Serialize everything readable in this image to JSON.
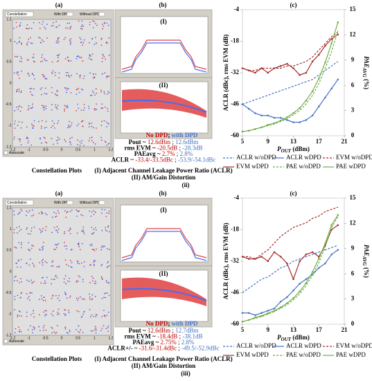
{
  "chart_data": [
    {
      "type": "line",
      "title": "(c)",
      "ylabel": "ACLR (dBc), rms EVM (dB)",
      "xlabel": {
        "main": "P",
        "sub": "OUT",
        "rest": " (dBm)"
      },
      "y2label": {
        "main": "PAE",
        "sub": "AVG",
        "rest": " (%)"
      },
      "x": [
        5,
        6,
        7,
        8,
        9,
        10,
        11,
        12,
        13,
        14,
        15,
        16,
        17,
        18,
        19,
        20
      ],
      "xlim": [
        5,
        21
      ],
      "xticks": [
        5,
        9,
        13,
        17,
        21
      ],
      "ylim": [
        -60,
        -4
      ],
      "yticks": [
        -60,
        -46,
        -32,
        -18,
        -4
      ],
      "y2lim": [
        0,
        15
      ],
      "y2ticks": [
        0,
        3,
        6,
        9,
        12,
        15
      ],
      "series": [
        {
          "name": "ACLR w/oDPD",
          "color": "#4472c4",
          "dashed": true,
          "values": [
            -46,
            -45,
            -44,
            -43,
            -42,
            -41,
            -40,
            -39,
            -38,
            -37,
            -36,
            -35,
            -33,
            -31,
            -29,
            -27
          ]
        },
        {
          "name": "ACLR wDPD",
          "color": "#4472c4",
          "dashed": false,
          "values": [
            -46,
            -48,
            -50,
            -51,
            -51,
            -52,
            -52,
            -53,
            -54,
            -54,
            -53,
            -51,
            -47,
            -43,
            -39,
            -35
          ]
        },
        {
          "name": "EVM w/oDPD",
          "color": "#a52a2a",
          "dashed": true,
          "values": [
            -30,
            -31,
            -31,
            -30,
            -30,
            -30,
            -30,
            -29,
            -29,
            -28,
            -27,
            -25,
            -22,
            -19,
            -16,
            -14
          ]
        },
        {
          "name": "EVM wDPD",
          "color": "#a52a2a",
          "dashed": false,
          "values": [
            -30,
            -31,
            -32,
            -30,
            -32,
            -30,
            -29,
            -28,
            -30,
            -33,
            -32,
            -27,
            -24,
            -20,
            -17,
            -15
          ]
        },
        {
          "name": "PAE w/oDPD",
          "color": "#70ad47",
          "dashed": true,
          "axis": "y2",
          "values": [
            0.5,
            0.6,
            0.8,
            1.0,
            1.2,
            1.4,
            1.7,
            2.0,
            2.5,
            3.0,
            3.8,
            4.8,
            6.2,
            8.0,
            10,
            12.5
          ]
        },
        {
          "name": "PAE wDPD",
          "color": "#70ad47",
          "dashed": false,
          "axis": "y2",
          "values": [
            0.5,
            0.6,
            0.8,
            1.0,
            1.3,
            1.5,
            1.8,
            2.2,
            2.7,
            3.3,
            4.2,
            5.3,
            6.8,
            8.7,
            11,
            13.5
          ]
        }
      ]
    },
    {
      "type": "line",
      "title": "(c)",
      "ylabel": "ACLR (dBc), rms EVM (dB)",
      "xlabel": {
        "main": "P",
        "sub": "OUT",
        "rest": " (dBm)"
      },
      "y2label": {
        "main": "PAE",
        "sub": "AVG",
        "rest": " (%)"
      },
      "x": [
        5,
        6,
        7,
        8,
        9,
        10,
        11,
        12,
        13,
        14,
        15,
        16,
        17,
        18,
        19,
        20
      ],
      "xlim": [
        5,
        21
      ],
      "xticks": [
        5,
        9,
        13,
        17,
        21
      ],
      "ylim": [
        -60,
        -4
      ],
      "yticks": [
        -60,
        -46,
        -32,
        -18,
        -4
      ],
      "y2lim": [
        0,
        15
      ],
      "y2ticks": [
        0,
        3,
        6,
        9,
        12,
        15
      ],
      "series": [
        {
          "name": "ACLR w/oDPD",
          "color": "#4472c4",
          "dashed": true,
          "values": [
            -46,
            -44,
            -42,
            -40,
            -39,
            -37,
            -35,
            -34,
            -32,
            -31,
            -30,
            -29,
            -28,
            -27,
            -26,
            -25
          ]
        },
        {
          "name": "ACLR wDPD",
          "color": "#4472c4",
          "dashed": false,
          "values": [
            -55,
            -55,
            -56,
            -55,
            -54,
            -53,
            -50,
            -48,
            -45,
            -42,
            -40,
            -38,
            -35,
            -33,
            -29,
            -27
          ]
        },
        {
          "name": "EVM w/oDPD",
          "color": "#a52a2a",
          "dashed": true,
          "values": [
            -30,
            -30,
            -31,
            -29,
            -27,
            -24,
            -21,
            -19,
            -17,
            -16,
            -15,
            -13,
            -12,
            -10,
            -9,
            -8
          ]
        },
        {
          "name": "EVM wDPD",
          "color": "#a52a2a",
          "dashed": false,
          "values": [
            -30,
            -31,
            -31,
            -30,
            -32,
            -28,
            -30,
            -33,
            -40,
            -32,
            -29,
            -28,
            -30,
            -25,
            -18,
            -16
          ]
        },
        {
          "name": "PAE w/oDPD",
          "color": "#70ad47",
          "dashed": true,
          "axis": "y2",
          "values": [
            0.3,
            0.5,
            0.7,
            0.9,
            1.2,
            1.5,
            1.9,
            2.3,
            2.9,
            3.6,
            4.6,
            5.8,
            7.3,
            9.2,
            11.5,
            12.8
          ]
        },
        {
          "name": "PAE wDPD",
          "color": "#70ad47",
          "dashed": false,
          "axis": "y2",
          "values": [
            0.3,
            0.5,
            0.8,
            1.0,
            1.3,
            1.6,
            2.0,
            2.5,
            3.1,
            3.9,
            4.9,
            6.2,
            7.8,
            9.6,
            11.8,
            13.0
          ]
        }
      ]
    }
  ],
  "rows": [
    {
      "figure_label": "(ii)",
      "panel_a": {
        "label": "(a)",
        "dropdown": "Constellation",
        "with": "With DPD",
        "without": "Without DPD",
        "autoscale": "Autoscale",
        "caption": "Constellation Plots",
        "xticks": [
          "-1.2",
          "-1",
          "-0.5",
          "0",
          "0.5",
          "1",
          "1.2"
        ],
        "yticks": [
          "1.2",
          "1",
          "0.5",
          "0",
          "-0.5",
          "-1",
          "-1.2"
        ]
      },
      "panel_b": {
        "label": "(b)",
        "plot1": "(I)",
        "plot2": "(II)",
        "legend_no": "No DPD",
        "legend_sep": "; ",
        "legend_with": "with DPD",
        "metrics": [
          {
            "label": "Pout ~ ",
            "without": "12.6dBm",
            "sep": " ; ",
            "with": "12.6dBm"
          },
          {
            "label": "rms EVM ~ ",
            "without": "-20.5dB",
            "sep": " ; ",
            "with": "-28.3dB"
          },
          {
            "label": "PAEavg ~ ",
            "without": "2.7%",
            "sep": " ; ",
            "with": "2.8%"
          },
          {
            "label": "ACLR ~ ",
            "without": "-33.4/-33.5dBc",
            "sep": " ; ",
            "with": "-53.9/-54.1dBc"
          }
        ],
        "caption1": "(I) Adjacent Channel Leakage Power Ratio (ACLR)",
        "caption2": "(II) AM/Gain Distortion"
      }
    },
    {
      "figure_label": "(iii)",
      "panel_a": {
        "label": "(a)",
        "dropdown": "Constellation",
        "with": "With DPD",
        "without": "Without DPD",
        "autoscale": "Autoscale",
        "caption": "Constellation Plots",
        "xticks": [
          "-1.2",
          "-1",
          "-0.5",
          "0",
          "0.5",
          "1",
          "1.2"
        ],
        "yticks": [
          "1.2",
          "1",
          "0.5",
          "0",
          "-0.5",
          "-1",
          "-1.2"
        ]
      },
      "panel_b": {
        "label": "(b)",
        "plot1": "(I)",
        "plot2": "(II)",
        "legend_no": "No DPD",
        "legend_sep": "; ",
        "legend_with": "with DPD",
        "metrics": [
          {
            "label": "Pout ~ ",
            "without": "12.6dBm",
            "sep": " ; ",
            "with": "12.7dBm"
          },
          {
            "label": "rms EVM ~ ",
            "without": "-18.4dB",
            "sep": " ; ",
            "with": "-38.1dB"
          },
          {
            "label": "PAEavg ~ ",
            "without": "2.75%",
            "sep": " ; ",
            "with": "2.8%"
          },
          {
            "label": "ACLR+/- ~ ",
            "without": "-31.6/-31.4dBc",
            "sep": " ; ",
            "with": "-49.5/-52.9dBc"
          }
        ],
        "caption1": "(I) Adjacent Channel Leakage Power Ratio (ACLR)",
        "caption2": "(II) AM/Gain Distortion"
      }
    }
  ]
}
